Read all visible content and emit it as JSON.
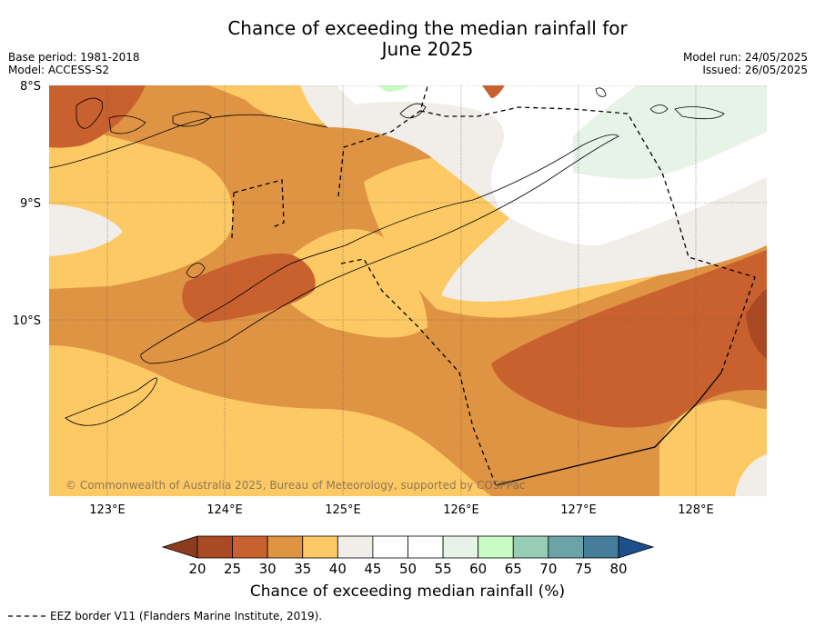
{
  "title_line1": "Chance of exceeding the median rainfall for",
  "title_line2": "June 2025",
  "meta_left": {
    "base_period": "Base period: 1981-2018",
    "model": "Model: ACCESS-S2"
  },
  "meta_right": {
    "model_run": "Model run: 24/05/2025",
    "issued": "Issued: 26/05/2025"
  },
  "latitude_labels": [
    "8°S",
    "9°S",
    "10°S"
  ],
  "longitude_labels": [
    "123°E",
    "124°E",
    "125°E",
    "126°E",
    "127°E",
    "128°E"
  ],
  "copyright": "© Commonwealth of Australia 2025, Bureau of Meteorology, supported by COSPPac",
  "colorbar": {
    "ticks": [
      "20",
      "25",
      "30",
      "35",
      "40",
      "45",
      "50",
      "55",
      "60",
      "65",
      "70",
      "75",
      "80"
    ],
    "colors": [
      "#a94a25",
      "#c9612f",
      "#df9443",
      "#fdc964",
      "#f1ede8",
      "#ffffff",
      "#ffffff",
      "#e6f3e6",
      "#c9fbc5",
      "#97cdb5",
      "#6ba3a8",
      "#447c9a"
    ],
    "under_color": "#8c3b1e",
    "over_color": "#1f4e8c",
    "title": "Chance of exceeding median rainfall (%)"
  },
  "legend": {
    "eez_label": "EEZ border V11 (Flanders Marine Institute, 2019)."
  }
}
